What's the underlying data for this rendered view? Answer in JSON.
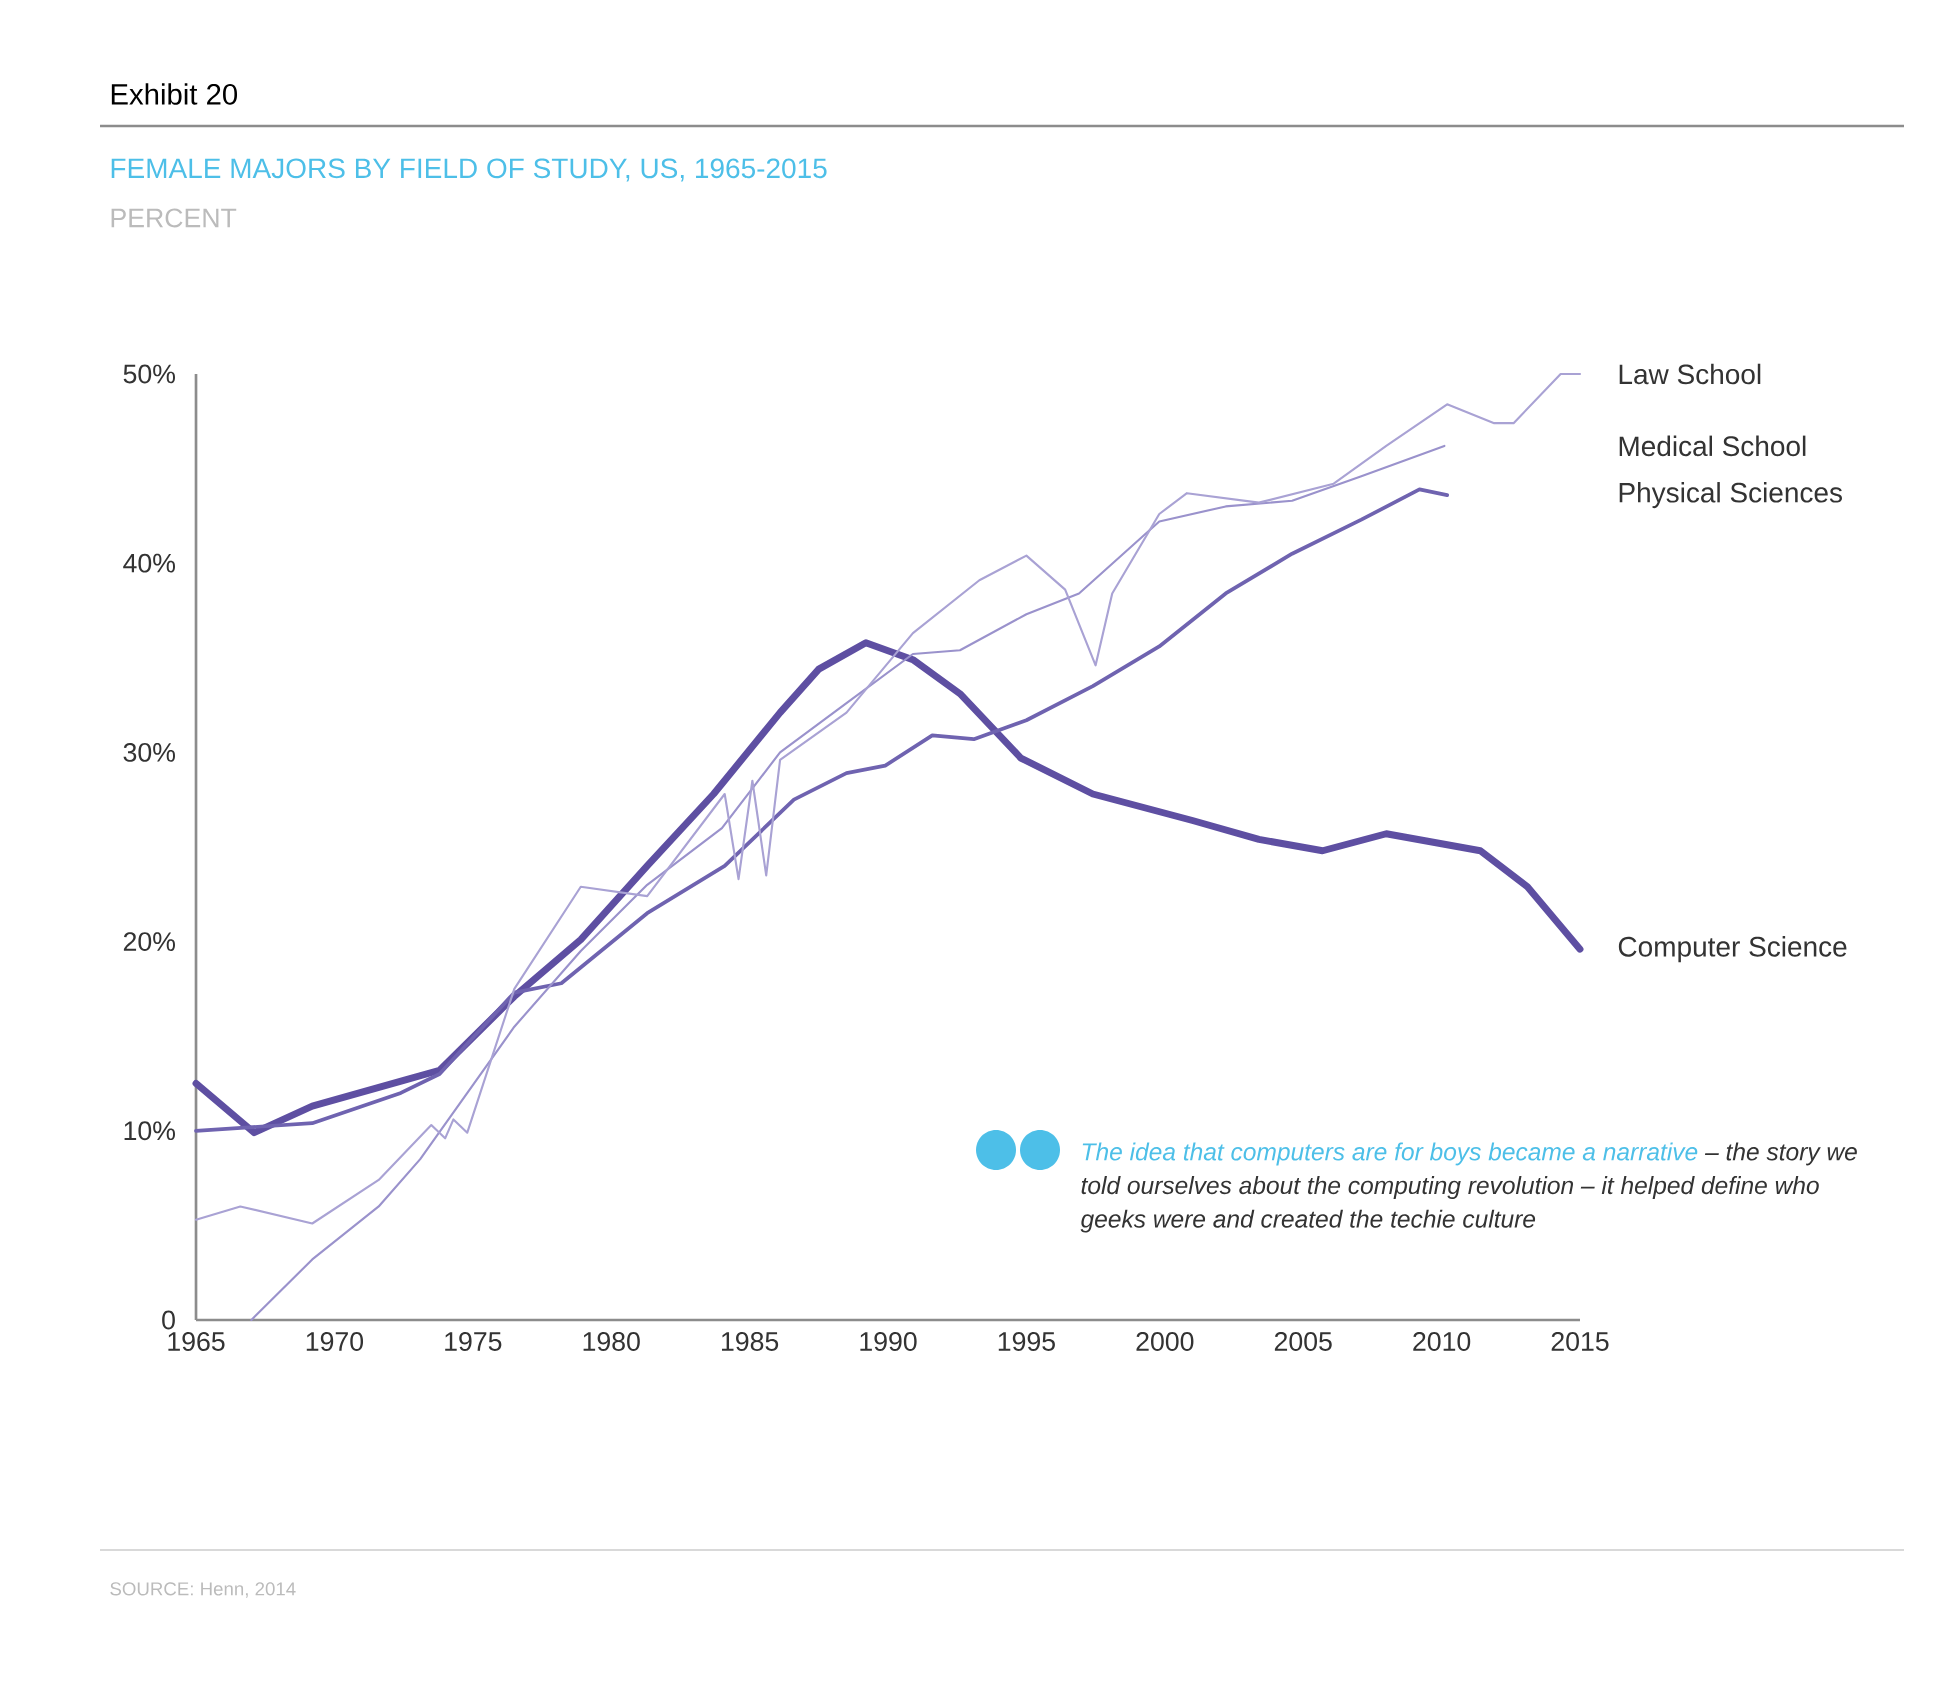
{
  "chart_data": {
    "type": "line",
    "title": "Exhibit 20",
    "subtitle": "FEMALE MAJORS BY FIELD OF STUDY, US, 1965-2015",
    "xlim": [
      1965,
      2015
    ],
    "ylim": [
      0,
      50
    ],
    "xticks": [
      1965,
      1970,
      1975,
      1980,
      1985,
      1990,
      1995,
      2000,
      2005,
      2010,
      2015
    ],
    "yticks": [
      0,
      {
        "value": 10,
        "label": "10%"
      },
      {
        "value": 20,
        "label": "20%"
      },
      {
        "value": 30,
        "label": "30%"
      },
      {
        "value": 40,
        "label": "40%"
      },
      {
        "value": 50,
        "label": "50%"
      }
    ],
    "grid": false,
    "series": [
      {
        "name": "Computer Science",
        "color": "#5e4fa2",
        "x": [
          1965,
          1967.1,
          1969.2,
          1972.6,
          1973.8,
          1976.5,
          1978.9,
          1981.3,
          1983.7,
          1986.1,
          1987.5,
          1989.2,
          1990.9,
          1992.6,
          1994.8,
          1997.4,
          2001.0,
          2003.4,
          2005.7,
          2008.0,
          2011.4,
          2013.1,
          2015
        ],
        "values": [
          12.5,
          9.9,
          11.3,
          12.7,
          13.2,
          17.1,
          20.1,
          24.0,
          27.8,
          32.1,
          34.4,
          35.8,
          34.9,
          33.1,
          29.7,
          27.8,
          26.4,
          25.4,
          24.8,
          25.7,
          24.8,
          22.9,
          19.6
        ]
      },
      {
        "name": "Physical Sciences",
        "color": "#6f63b0",
        "x": [
          1965,
          1969.2,
          1972.4,
          1973.8,
          1976.5,
          1978.2,
          1981.3,
          1984.1,
          1986.6,
          1988.5,
          1989.9,
          1991.6,
          1993.1,
          1995.0,
          1997.4,
          1999.8,
          2002.2,
          2004.6,
          2007.1,
          2009.2,
          2010.2
        ],
        "values": [
          10.0,
          10.4,
          12.0,
          13.0,
          17.3,
          17.8,
          21.5,
          24.0,
          27.5,
          28.9,
          29.3,
          30.9,
          30.7,
          31.7,
          33.5,
          35.6,
          38.4,
          40.5,
          42.3,
          43.9,
          43.6
        ]
      },
      {
        "name": "Medical School",
        "color": "#9a92cc",
        "x": [
          1967,
          1969.2,
          1971.6,
          1973.1,
          1976.5,
          1978.9,
          1981.3,
          1984.0,
          1986.1,
          1988.5,
          1990.9,
          1992.6,
          1995.0,
          1996.9,
          1999.8,
          2002.2,
          2004.6,
          2007.1,
          2010.1
        ],
        "values": [
          0.0,
          3.2,
          6.0,
          8.5,
          15.5,
          19.5,
          23.0,
          26.0,
          30.0,
          32.6,
          35.2,
          35.4,
          37.3,
          38.4,
          42.2,
          43.0,
          43.3,
          44.6,
          46.2
        ]
      },
      {
        "name": "Law School",
        "color": "#a9a2d4",
        "x": [
          1965,
          1966.6,
          1969.2,
          1971.6,
          1973.5,
          1974.0,
          1974.3,
          1974.8,
          1976.5,
          1978.9,
          1981.3,
          1984.1,
          1984.6,
          1985.1,
          1985.6,
          1986.1,
          1988.5,
          1990.9,
          1993.3,
          1995.0,
          1996.4,
          1997.5,
          1998.1,
          1999.8,
          2000.8,
          2003.4,
          2006.1,
          2008.0,
          2010.2,
          2011.9,
          2012.6,
          2014.3,
          2015
        ],
        "values": [
          5.3,
          6.0,
          5.1,
          7.4,
          10.3,
          9.6,
          10.6,
          9.9,
          17.5,
          22.9,
          22.4,
          27.8,
          23.3,
          28.5,
          23.5,
          29.6,
          32.1,
          36.3,
          39.1,
          40.4,
          38.6,
          34.6,
          38.4,
          42.6,
          43.7,
          43.2,
          44.2,
          46.2,
          48.4,
          47.4,
          47.4,
          50.0,
          50.0
        ]
      }
    ],
    "annotations": [
      "PERCENT",
      "The idea that computers are for boys became a narrative",
      "– the story we told ourselves about the computing revolution – it helped define who geeks were and created the techie culture",
      "SOURCE: Henn, 2014"
    ]
  }
}
